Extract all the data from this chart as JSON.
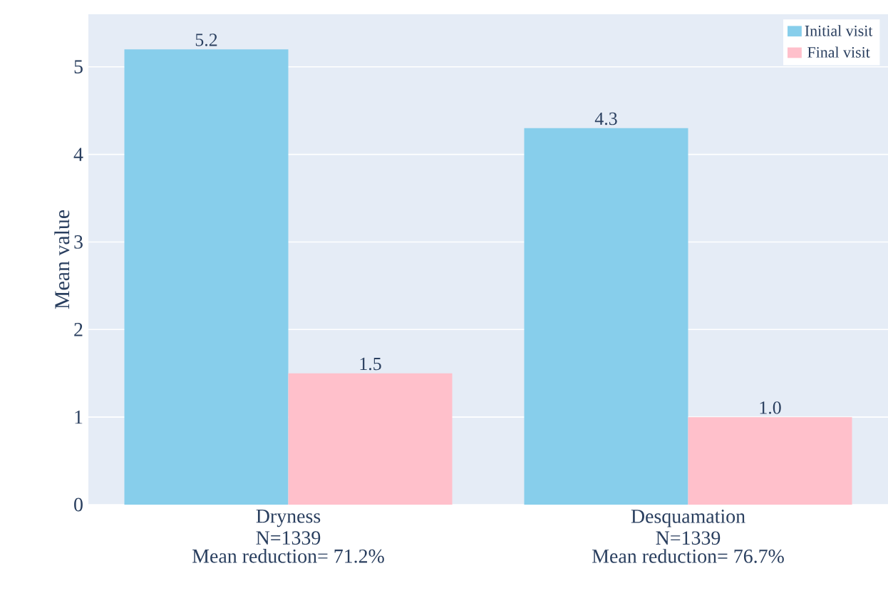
{
  "chart_data": {
    "type": "bar",
    "ylabel": "Mean value",
    "categories": [
      "Dryness",
      "Desquamation"
    ],
    "series": [
      {
        "name": "Initial visit",
        "color": "#87ceeb",
        "values": [
          5.2,
          4.3
        ],
        "value_labels": [
          "5.2",
          "4.3"
        ]
      },
      {
        "name": "Final visit",
        "color": "#ffc0cb",
        "values": [
          1.5,
          1.0
        ],
        "value_labels": [
          "1.5",
          "1.0"
        ]
      }
    ],
    "annotations": [
      "N=1339",
      "Mean reduction= 71.2%",
      "N=1339",
      "Mean reduction= 76.7%"
    ],
    "ylim": [
      0,
      5.6
    ],
    "yticks": [
      0,
      1,
      2,
      3,
      4,
      5
    ],
    "grid": "y",
    "legend": "top right"
  }
}
